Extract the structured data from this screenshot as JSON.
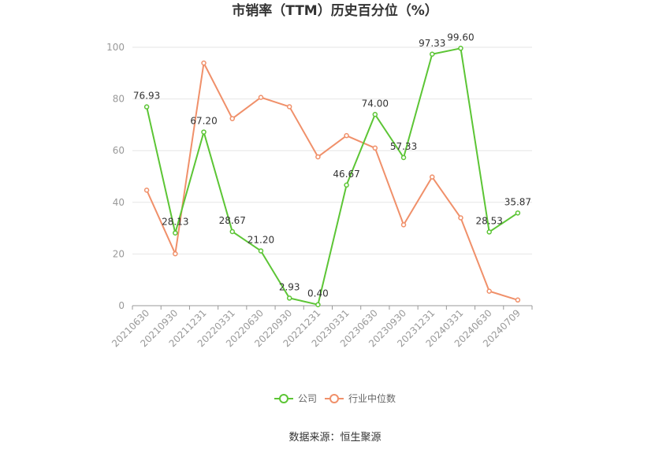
{
  "chart_data": {
    "type": "line",
    "title": "市销率（TTM）历史百分位（%）",
    "categories": [
      "20210630",
      "20210930",
      "20211231",
      "20220331",
      "20220630",
      "20220930",
      "20221231",
      "20230331",
      "20230630",
      "20230930",
      "20231231",
      "20240331",
      "20240630",
      "20240709"
    ],
    "series": [
      {
        "name": "公司",
        "color": "#5cc535",
        "values": [
          76.93,
          28.13,
          67.2,
          28.67,
          21.2,
          2.93,
          0.4,
          46.67,
          74.0,
          57.33,
          97.33,
          99.6,
          28.53,
          35.87
        ],
        "labels": [
          "76.93",
          "28.13",
          "67.20",
          "28.67",
          "21.20",
          "2.93",
          "0.40",
          "46.67",
          "74.00",
          "57.33",
          "97.33",
          "99.60",
          "28.53",
          "35.87"
        ]
      },
      {
        "name": "行业中位数",
        "color": "#f0906a",
        "values": [
          44.7,
          20.1,
          93.9,
          72.4,
          80.6,
          77.0,
          57.6,
          65.8,
          61.0,
          31.3,
          49.8,
          34.0,
          5.6,
          2.2
        ]
      }
    ],
    "ylim": [
      0,
      100
    ],
    "yticks": [
      0,
      20,
      40,
      60,
      80,
      100
    ],
    "xlabel": "",
    "ylabel": "",
    "grid": true,
    "legend": "bottom-center"
  },
  "source": "数据来源：恒生聚源"
}
